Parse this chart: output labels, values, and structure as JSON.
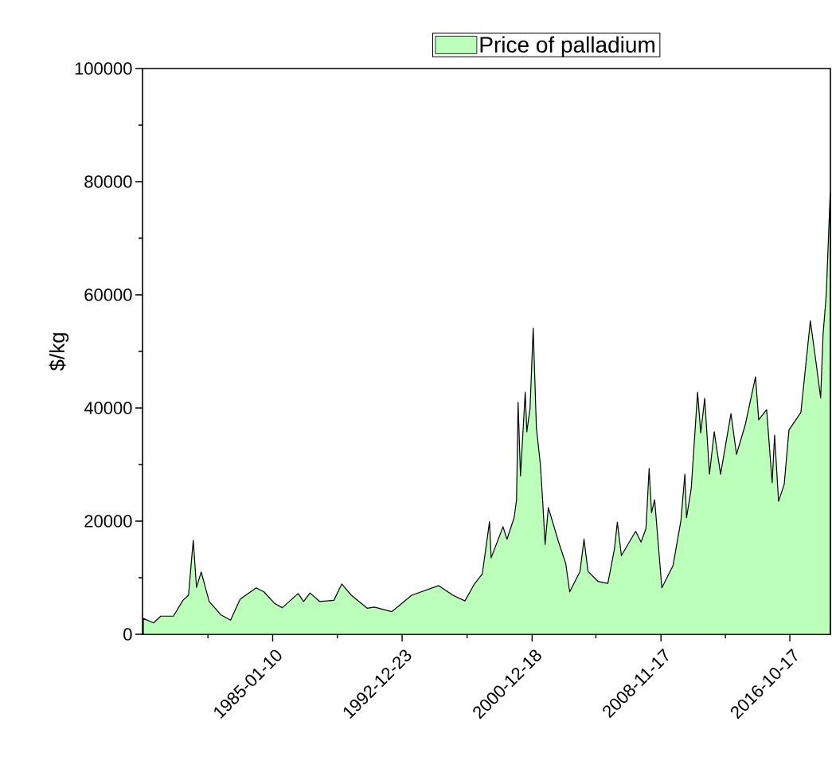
{
  "chart_data": {
    "type": "area",
    "ylabel": "$/kg",
    "x": [
      "1977-01-30",
      "1977-09-17",
      "1978-02-25",
      "1978-12-05",
      "1979-07-08",
      "1979-11-10",
      "1980-01-20",
      "1980-02-25",
      "1980-05-07",
      "1980-08-21",
      "1981-02-16",
      "1981-11-10",
      "1982-06-11",
      "1983-01-11",
      "1984-01-04",
      "1984-06-28",
      "1985-02-16",
      "1985-08-13",
      "1986-08-04",
      "1986-12-06",
      "1987-04-28",
      "1987-11-27",
      "1988-10-14",
      "1989-04-10",
      "1989-11-10",
      "1990-11-01",
      "1991-04-10",
      "1992-05-07",
      "1993-07-26",
      "1995-03-24",
      "1996-02-07",
      "1996-11-01",
      "1997-06-03",
      "1997-11-27",
      "1998-05-07",
      "1998-06-13",
      "1999-03-06",
      "1999-06-03",
      "1999-11-10",
      "2000-01-04",
      "2000-02-07",
      "2000-04-01",
      "2000-07-16",
      "2000-08-21",
      "2000-11-01",
      "2001-01-11",
      "2001-03-24",
      "2001-06-21",
      "2001-08-13",
      "2001-10-05",
      "2001-12-16",
      "2002-08-04",
      "2003-01-11",
      "2003-04-10",
      "2003-11-27",
      "2004-02-25",
      "2004-05-25",
      "2005-01-11",
      "2005-08-13",
      "2006-01-04",
      "2006-03-14",
      "2006-06-13",
      "2007-04-28",
      "2007-08-28",
      "2007-12-16",
      "2008-02-25",
      "2008-04-19",
      "2008-06-28",
      "2008-12-06",
      "2009-08-13",
      "2010-02-07",
      "2010-05-07",
      "2010-06-13",
      "2010-09-27",
      "2011-02-16",
      "2011-04-28",
      "2011-07-26",
      "2011-11-10",
      "2012-02-25",
      "2012-07-16",
      "2013-03-06",
      "2013-07-08",
      "2014-01-20",
      "2014-09-08",
      "2014-11-18",
      "2015-05-15",
      "2015-09-16",
      "2015-11-10",
      "2016-02-07",
      "2016-06-13",
      "2016-09-27",
      "2017-06-21",
      "2018-01-20",
      "2018-05-25",
      "2018-09-08",
      "2018-11-01",
      "2019-01-11",
      "2019-04-10"
    ],
    "series": [
      {
        "name": "Price of palladium",
        "color": "#bbffbb",
        "values": [
          2800,
          2000,
          3200,
          3200,
          6000,
          6900,
          13500,
          16600,
          8300,
          11000,
          5800,
          3400,
          2500,
          6200,
          8200,
          7500,
          5500,
          4700,
          7200,
          5800,
          7300,
          5800,
          6000,
          8900,
          6900,
          4600,
          4800,
          4000,
          6900,
          8600,
          6900,
          5900,
          8900,
          10700,
          19900,
          13500,
          19000,
          16800,
          20600,
          23800,
          41000,
          28000,
          42800,
          35800,
          39900,
          54100,
          36500,
          30000,
          23400,
          15900,
          22400,
          16300,
          12500,
          7500,
          11100,
          16800,
          11100,
          9300,
          9000,
          14900,
          19800,
          13900,
          18200,
          16300,
          18700,
          29300,
          21500,
          23800,
          8200,
          12100,
          20100,
          28300,
          20600,
          25800,
          42800,
          35600,
          41700,
          28300,
          35800,
          28300,
          39000,
          31800,
          37000,
          45500,
          37900,
          39700,
          26800,
          35200,
          23500,
          26500,
          36100,
          39200,
          55400,
          48200,
          41800,
          53000,
          59900,
          77900
        ]
      }
    ],
    "xlim": [
      "1977-01-12",
      "2019-04-15"
    ],
    "xticks": [
      {
        "value": "1981-01-19",
        "label": null
      },
      "1985-01-10",
      {
        "value": "1988-12-31",
        "label": null
      },
      "1992-12-23",
      {
        "value": "1996-12-20",
        "label": null
      },
      "2000-12-18",
      {
        "value": "2004-11-17",
        "label": null
      },
      "2008-11-17",
      {
        "value": "2012-10-31",
        "label": null
      },
      "2016-10-17"
    ],
    "ylim": [
      0,
      100000
    ],
    "yticks": [
      0,
      {
        "value": 10000,
        "label": null
      },
      20000,
      {
        "value": 30000,
        "label": null
      },
      40000,
      {
        "value": 50000,
        "label": null
      },
      60000,
      {
        "value": 70000,
        "label": null
      },
      80000,
      {
        "value": 90000,
        "label": null
      },
      100000
    ],
    "legend": "top",
    "marker": "none",
    "line_style": "solid"
  }
}
